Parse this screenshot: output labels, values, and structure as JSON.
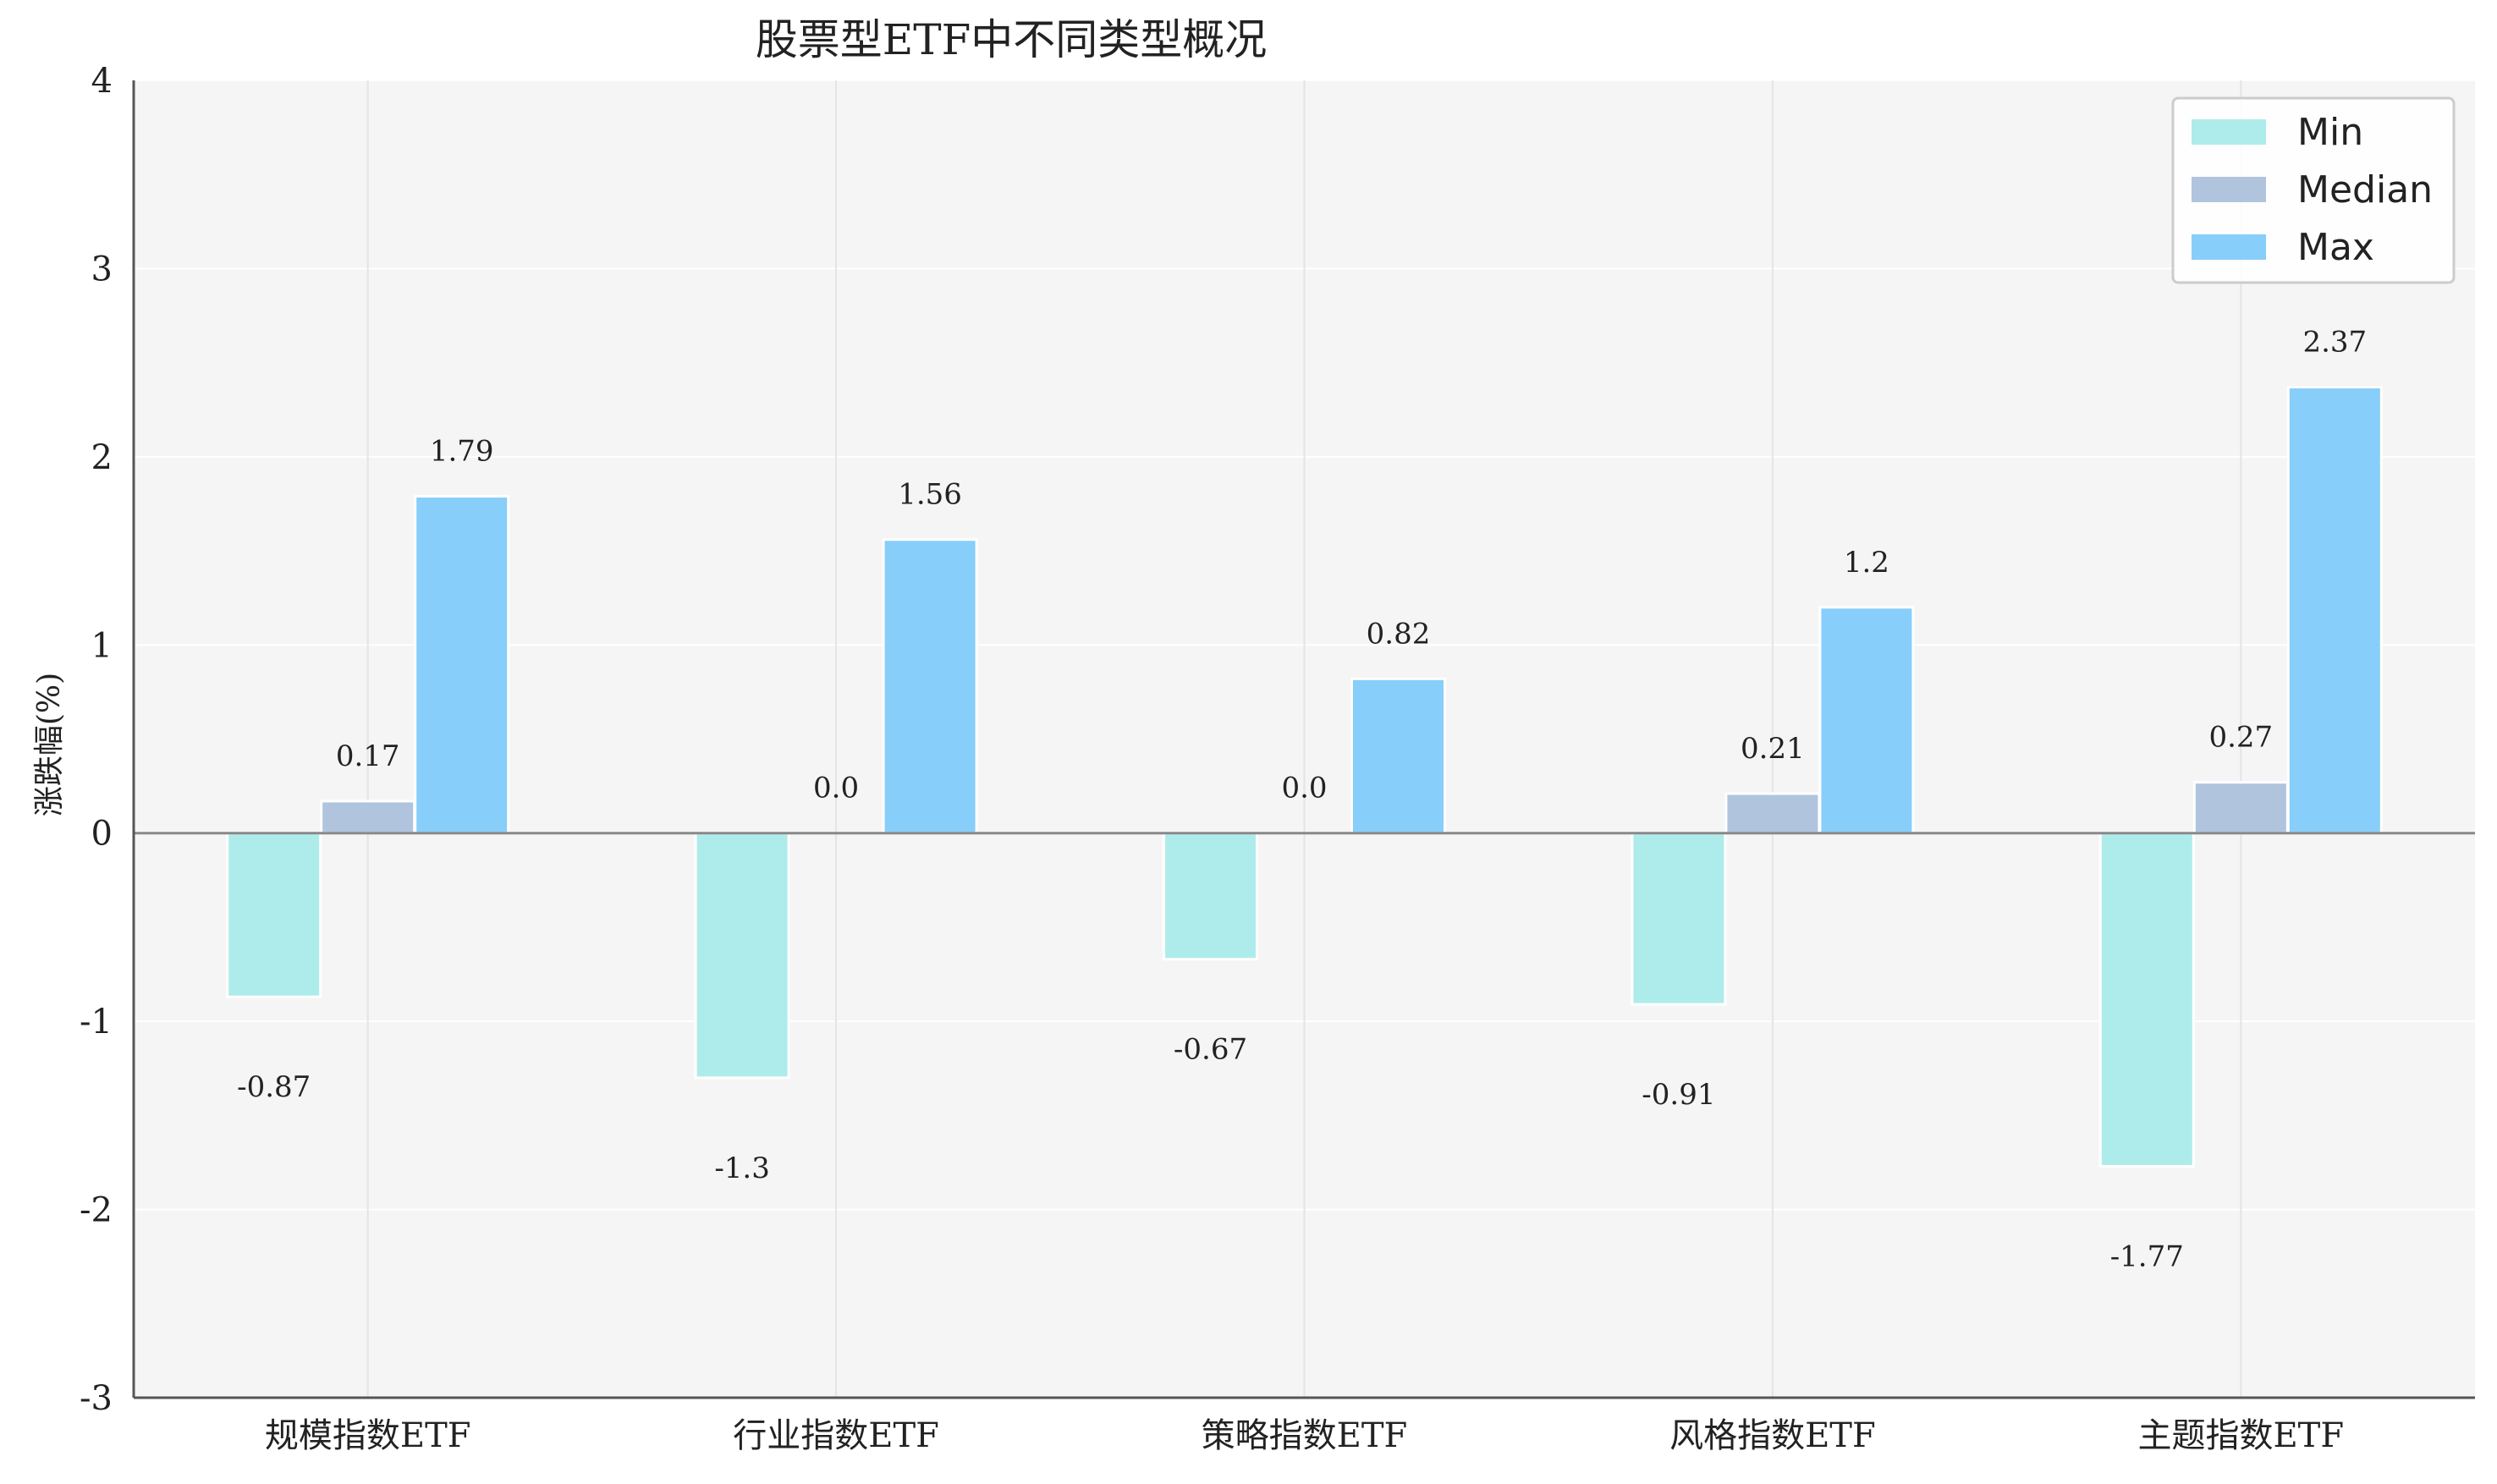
{
  "chart_data": {
    "type": "bar",
    "title": "股票型ETF中不同类型概况",
    "xlabel": "",
    "ylabel": "涨跌幅(%)",
    "ylim": [
      -3,
      4
    ],
    "yticks": [
      -3,
      -2,
      -1,
      0,
      1,
      2,
      3,
      4
    ],
    "grid": true,
    "legend_position": "top-right",
    "categories": [
      "规模指数ETF",
      "行业指数ETF",
      "策略指数ETF",
      "风格指数ETF",
      "主题指数ETF"
    ],
    "series": [
      {
        "name": "Min",
        "color": "#aeeceb",
        "values": [
          -0.87,
          -1.3,
          -0.67,
          -0.91,
          -1.77
        ],
        "labels": [
          "-0.87",
          "-1.3",
          "-0.67",
          "-0.91",
          "-1.77"
        ]
      },
      {
        "name": "Median",
        "color": "#b0c4de",
        "values": [
          0.17,
          0.0,
          0.0,
          0.21,
          0.27
        ],
        "labels": [
          "0.17",
          "0.0",
          "0.0",
          "0.21",
          "0.27"
        ]
      },
      {
        "name": "Max",
        "color": "#87cefa",
        "values": [
          1.79,
          1.56,
          0.82,
          1.2,
          2.37
        ],
        "labels": [
          "1.79",
          "1.56",
          "0.82",
          "1.2",
          "2.37"
        ]
      }
    ]
  }
}
